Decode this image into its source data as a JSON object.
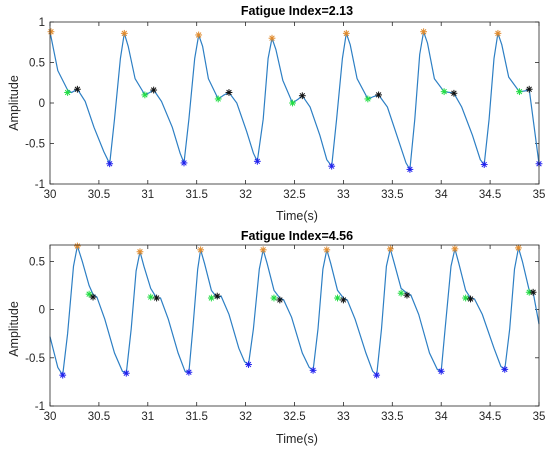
{
  "colors": {
    "signal": "#2d7fc4",
    "peak": "#e08a2c",
    "trough": "#2020ee",
    "notch": "#22dd44",
    "dicrotic": "#111111",
    "axes": "#262626"
  },
  "chart_data": [
    {
      "type": "line",
      "title": "Fatigue Index=2.13",
      "xlabel": "Time(s)",
      "ylabel": "Amplitude",
      "xlim": [
        30,
        35
      ],
      "ylim": [
        -1,
        1
      ],
      "xticks": [
        30,
        30.5,
        31,
        31.5,
        32,
        32.5,
        33,
        33.5,
        34,
        34.5,
        35
      ],
      "xtick_labels": [
        "30",
        "30.5",
        "31",
        "31.5",
        "32",
        "32.5",
        "33",
        "33.5",
        "34",
        "34.5",
        "35"
      ],
      "yticks": [
        -1,
        -0.5,
        0,
        0.5,
        1
      ],
      "ytick_labels": [
        "-1",
        "-0.5",
        "0",
        "0.5",
        "1"
      ],
      "grid": false,
      "series": [
        {
          "marker": "line",
          "x": [
            30.0,
            30.08,
            30.18,
            30.22,
            30.28,
            30.36,
            30.45,
            30.55,
            30.61,
            30.66,
            30.72,
            30.76,
            30.8,
            30.87,
            30.97,
            31.02,
            31.06,
            31.14,
            31.25,
            31.33,
            31.37,
            31.42,
            31.48,
            31.52,
            31.56,
            31.62,
            31.72,
            31.78,
            31.83,
            31.91,
            32.01,
            32.08,
            32.12,
            32.18,
            32.23,
            32.27,
            32.31,
            32.38,
            32.48,
            32.54,
            32.58,
            32.66,
            32.76,
            32.83,
            32.88,
            32.93,
            32.99,
            33.03,
            33.07,
            33.14,
            33.25,
            33.31,
            33.36,
            33.45,
            33.56,
            33.64,
            33.68,
            33.73,
            33.78,
            33.82,
            33.86,
            33.93,
            34.03,
            34.09,
            34.13,
            34.21,
            34.32,
            34.4,
            34.44,
            34.49,
            34.54,
            34.58,
            34.62,
            34.69,
            34.8,
            34.86,
            34.9,
            35.0
          ],
          "y": [
            0.88,
            0.4,
            0.16,
            0.13,
            0.17,
            0.02,
            -0.3,
            -0.6,
            -0.75,
            -0.2,
            0.55,
            0.86,
            0.7,
            0.3,
            0.1,
            0.13,
            0.16,
            0.02,
            -0.3,
            -0.62,
            -0.74,
            -0.2,
            0.55,
            0.84,
            0.7,
            0.3,
            0.05,
            0.1,
            0.13,
            0.0,
            -0.35,
            -0.62,
            -0.72,
            -0.2,
            0.55,
            0.8,
            0.66,
            0.28,
            0.0,
            0.05,
            0.09,
            -0.05,
            -0.4,
            -0.7,
            -0.78,
            -0.2,
            0.55,
            0.86,
            0.72,
            0.3,
            0.05,
            0.08,
            0.1,
            -0.05,
            -0.45,
            -0.74,
            -0.82,
            -0.2,
            0.6,
            0.88,
            0.74,
            0.3,
            0.14,
            0.13,
            0.12,
            -0.05,
            -0.4,
            -0.7,
            -0.76,
            -0.2,
            0.55,
            0.86,
            0.72,
            0.32,
            0.14,
            0.15,
            0.17,
            -0.75
          ]
        },
        {
          "marker": "peak",
          "x": [
            30.01,
            30.76,
            31.52,
            32.27,
            33.03,
            33.82,
            34.58
          ],
          "y": [
            0.88,
            0.86,
            0.84,
            0.8,
            0.86,
            0.88,
            0.86
          ]
        },
        {
          "marker": "trough",
          "x": [
            30.61,
            31.37,
            32.12,
            32.88,
            33.68,
            34.44,
            35.0
          ],
          "y": [
            -0.75,
            -0.74,
            -0.72,
            -0.78,
            -0.82,
            -0.76,
            -0.75
          ]
        },
        {
          "marker": "notch",
          "x": [
            30.18,
            30.97,
            31.72,
            32.48,
            33.25,
            34.03,
            34.8
          ],
          "y": [
            0.13,
            0.1,
            0.05,
            0.0,
            0.05,
            0.14,
            0.14
          ]
        },
        {
          "marker": "dicrotic",
          "x": [
            30.28,
            31.06,
            31.83,
            32.58,
            33.36,
            34.13,
            34.9
          ],
          "y": [
            0.17,
            0.16,
            0.13,
            0.09,
            0.1,
            0.12,
            0.17
          ]
        }
      ]
    },
    {
      "type": "line",
      "title": "Fatigue Index=4.56",
      "xlabel": "Time(s)",
      "ylabel": "Amplitude",
      "xlim": [
        30,
        35
      ],
      "ylim": [
        -1,
        0.67
      ],
      "xticks": [
        30,
        30.5,
        31,
        31.5,
        32,
        32.5,
        33,
        33.5,
        34,
        34.5,
        35
      ],
      "xtick_labels": [
        "30",
        "30.5",
        "31",
        "31.5",
        "32",
        "32.5",
        "33",
        "33.5",
        "34",
        "34.5",
        "35"
      ],
      "yticks": [
        -1,
        -0.5,
        0,
        0.5
      ],
      "ytick_labels": [
        "-1",
        "-0.5",
        "0",
        "0.5"
      ],
      "grid": false,
      "series": [
        {
          "marker": "line",
          "x": [
            30.0,
            30.08,
            30.13,
            30.18,
            30.24,
            30.28,
            30.33,
            30.4,
            30.44,
            30.48,
            30.56,
            30.66,
            30.74,
            30.78,
            30.83,
            30.88,
            30.92,
            30.96,
            31.03,
            31.09,
            31.13,
            31.21,
            31.31,
            31.38,
            31.42,
            31.46,
            31.51,
            31.54,
            31.58,
            31.65,
            31.71,
            31.75,
            31.83,
            31.93,
            31.99,
            32.03,
            32.08,
            32.14,
            32.18,
            32.22,
            32.29,
            32.35,
            32.39,
            32.47,
            32.58,
            32.65,
            32.69,
            32.74,
            32.79,
            32.83,
            32.87,
            32.94,
            33.0,
            33.04,
            33.12,
            33.23,
            33.3,
            33.34,
            33.39,
            33.44,
            33.48,
            33.52,
            33.59,
            33.65,
            33.69,
            33.77,
            33.88,
            33.96,
            34.0,
            34.04,
            34.1,
            34.14,
            34.18,
            34.25,
            34.3,
            34.34,
            34.42,
            34.54,
            34.61,
            34.65,
            34.7,
            34.75,
            34.79,
            34.83,
            34.9,
            34.94,
            35.0
          ],
          "y": [
            -0.28,
            -0.6,
            -0.68,
            -0.25,
            0.45,
            0.66,
            0.5,
            0.25,
            0.16,
            0.13,
            -0.1,
            -0.45,
            -0.64,
            -0.66,
            -0.2,
            0.4,
            0.6,
            0.45,
            0.22,
            0.12,
            0.12,
            -0.1,
            -0.45,
            -0.64,
            -0.65,
            -0.2,
            0.42,
            0.62,
            0.48,
            0.2,
            0.12,
            0.14,
            -0.05,
            -0.4,
            -0.54,
            -0.57,
            -0.2,
            0.42,
            0.62,
            0.48,
            0.2,
            0.12,
            0.1,
            -0.08,
            -0.45,
            -0.6,
            -0.63,
            -0.2,
            0.42,
            0.62,
            0.48,
            0.2,
            0.12,
            0.1,
            -0.1,
            -0.45,
            -0.64,
            -0.68,
            -0.2,
            0.45,
            0.63,
            0.48,
            0.22,
            0.17,
            0.15,
            -0.05,
            -0.45,
            -0.62,
            -0.64,
            -0.2,
            0.45,
            0.63,
            0.48,
            0.2,
            0.12,
            0.11,
            -0.05,
            -0.4,
            -0.59,
            -0.62,
            -0.2,
            0.42,
            0.64,
            0.5,
            0.2,
            0.18,
            -0.15
          ]
        },
        {
          "marker": "peak",
          "x": [
            30.28,
            30.92,
            31.54,
            32.18,
            32.83,
            33.48,
            34.14,
            34.79
          ],
          "y": [
            0.66,
            0.6,
            0.62,
            0.62,
            0.62,
            0.63,
            0.63,
            0.64
          ]
        },
        {
          "marker": "trough",
          "x": [
            30.13,
            30.78,
            31.42,
            32.03,
            32.69,
            33.34,
            34.0,
            34.65
          ],
          "y": [
            -0.68,
            -0.66,
            -0.65,
            -0.57,
            -0.63,
            -0.68,
            -0.64,
            -0.62
          ]
        },
        {
          "marker": "notch",
          "x": [
            30.4,
            31.03,
            31.65,
            32.29,
            32.94,
            33.59,
            34.25,
            34.9
          ],
          "y": [
            0.16,
            0.13,
            0.12,
            0.12,
            0.12,
            0.17,
            0.12,
            0.18
          ]
        },
        {
          "marker": "dicrotic",
          "x": [
            30.44,
            31.09,
            31.71,
            32.35,
            33.0,
            33.65,
            34.3,
            34.94
          ],
          "y": [
            0.13,
            0.12,
            0.14,
            0.1,
            0.1,
            0.15,
            0.11,
            0.18
          ]
        }
      ]
    }
  ]
}
